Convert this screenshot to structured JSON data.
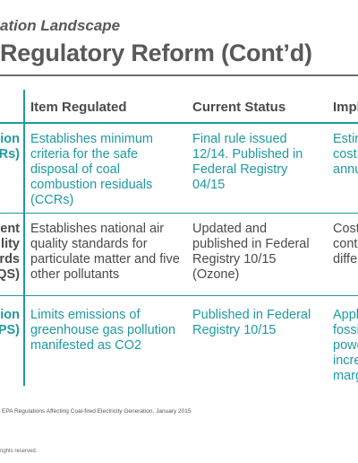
{
  "header": {
    "subtitle": "ation Landscape",
    "title": "Regulatory Reform (Cont’d)"
  },
  "table": {
    "columns": [
      "Item Regulated",
      "Current Status",
      "Impl"
    ],
    "rows": [
      {
        "label": [
          "ion",
          "Rs)"
        ],
        "item": [
          "Establishes minimum",
          "criteria for the safe",
          "disposal of coal",
          "combustion residuals",
          "(CCRs)"
        ],
        "status": [
          "Final rule issued",
          "12/14. Published in",
          "Federal Registry",
          "04/15"
        ],
        "impl": [
          "Estir",
          "cost",
          "annu"
        ],
        "style": "teal"
      },
      {
        "label": [
          "ent",
          "lity",
          "rds",
          "QS)"
        ],
        "item": [
          "Establishes national air",
          "quality standards for",
          "particulate matter and five",
          "other pollutants"
        ],
        "status": [
          "Updated and",
          "published in Federal",
          "Registry 10/15",
          "(Ozone)"
        ],
        "impl": [
          "Cost",
          "cont",
          "diffe"
        ],
        "style": "grey"
      },
      {
        "label": [
          "ion",
          "PS)"
        ],
        "item": [
          "Limits emissions of",
          "greenhouse gas pollution",
          "manifested as CO2"
        ],
        "status": [
          "Published in Federal",
          "Registry 10/15"
        ],
        "impl": [
          "Appl",
          "fossi",
          "powe",
          "incre",
          "marg"
        ],
        "style": "teal"
      }
    ]
  },
  "footer": {
    "source": "EPA Regulations Affecting Coal-fired Electricity Generation, January  2015",
    "rights": "rights reserved."
  },
  "colors": {
    "accent": "#1e9aa2",
    "heading": "#595959",
    "body": "#4a4a4a"
  }
}
